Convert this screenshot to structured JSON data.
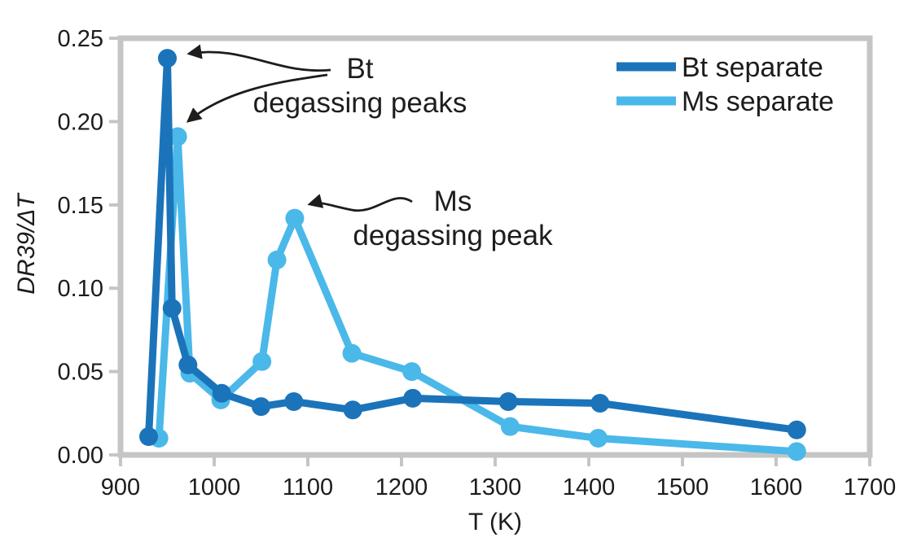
{
  "chart_data": {
    "type": "line",
    "title": "",
    "xlabel": "T (K)",
    "ylabel": "DR39/ΔT",
    "xlim": [
      900,
      1700
    ],
    "ylim": [
      0,
      0.25
    ],
    "x_ticks": [
      900,
      1000,
      1100,
      1200,
      1300,
      1400,
      1500,
      1600,
      1700
    ],
    "x_tick_labels": [
      "900",
      "1000",
      "1100",
      "1200",
      "1300",
      "1400",
      "1500",
      "1600",
      "1700"
    ],
    "y_ticks": [
      0.0,
      0.05,
      0.1,
      0.15,
      0.2,
      0.25
    ],
    "y_tick_labels": [
      "0.00",
      "0.05",
      "0.10",
      "0.15",
      "0.20",
      "0.25"
    ],
    "grid": false,
    "legend_position": "top-right-inside",
    "axis_color": "#c5c5c5",
    "text_color": "#1c1c1c",
    "annotation_color": "#1d1d1d",
    "series": [
      {
        "name": "Bt separate",
        "color": "#1b74ba",
        "marker": "circle",
        "x": [
          930,
          950,
          955,
          972,
          1008,
          1050,
          1085,
          1148,
          1212,
          1314,
          1412,
          1622
        ],
        "y": [
          0.011,
          0.238,
          0.088,
          0.054,
          0.037,
          0.029,
          0.032,
          0.027,
          0.034,
          0.032,
          0.031,
          0.015
        ]
      },
      {
        "name": "Ms separate",
        "color": "#4ab8e9",
        "marker": "circle",
        "x": [
          941,
          961,
          974,
          1007,
          1051,
          1067,
          1086,
          1147,
          1211,
          1316,
          1410,
          1622
        ],
        "y": [
          0.01,
          0.191,
          0.049,
          0.033,
          0.056,
          0.117,
          0.142,
          0.061,
          0.05,
          0.017,
          0.01,
          0.002
        ]
      }
    ],
    "annotations": [
      {
        "text_lines": [
          "Bt",
          "degassing peaks"
        ],
        "points_to": [
          "Bt peak at ~950 K",
          "Ms spike at ~961 K"
        ]
      },
      {
        "text_lines": [
          "Ms",
          "degassing peak"
        ],
        "points_to": [
          "Ms peak at ~1086 K"
        ]
      }
    ]
  }
}
